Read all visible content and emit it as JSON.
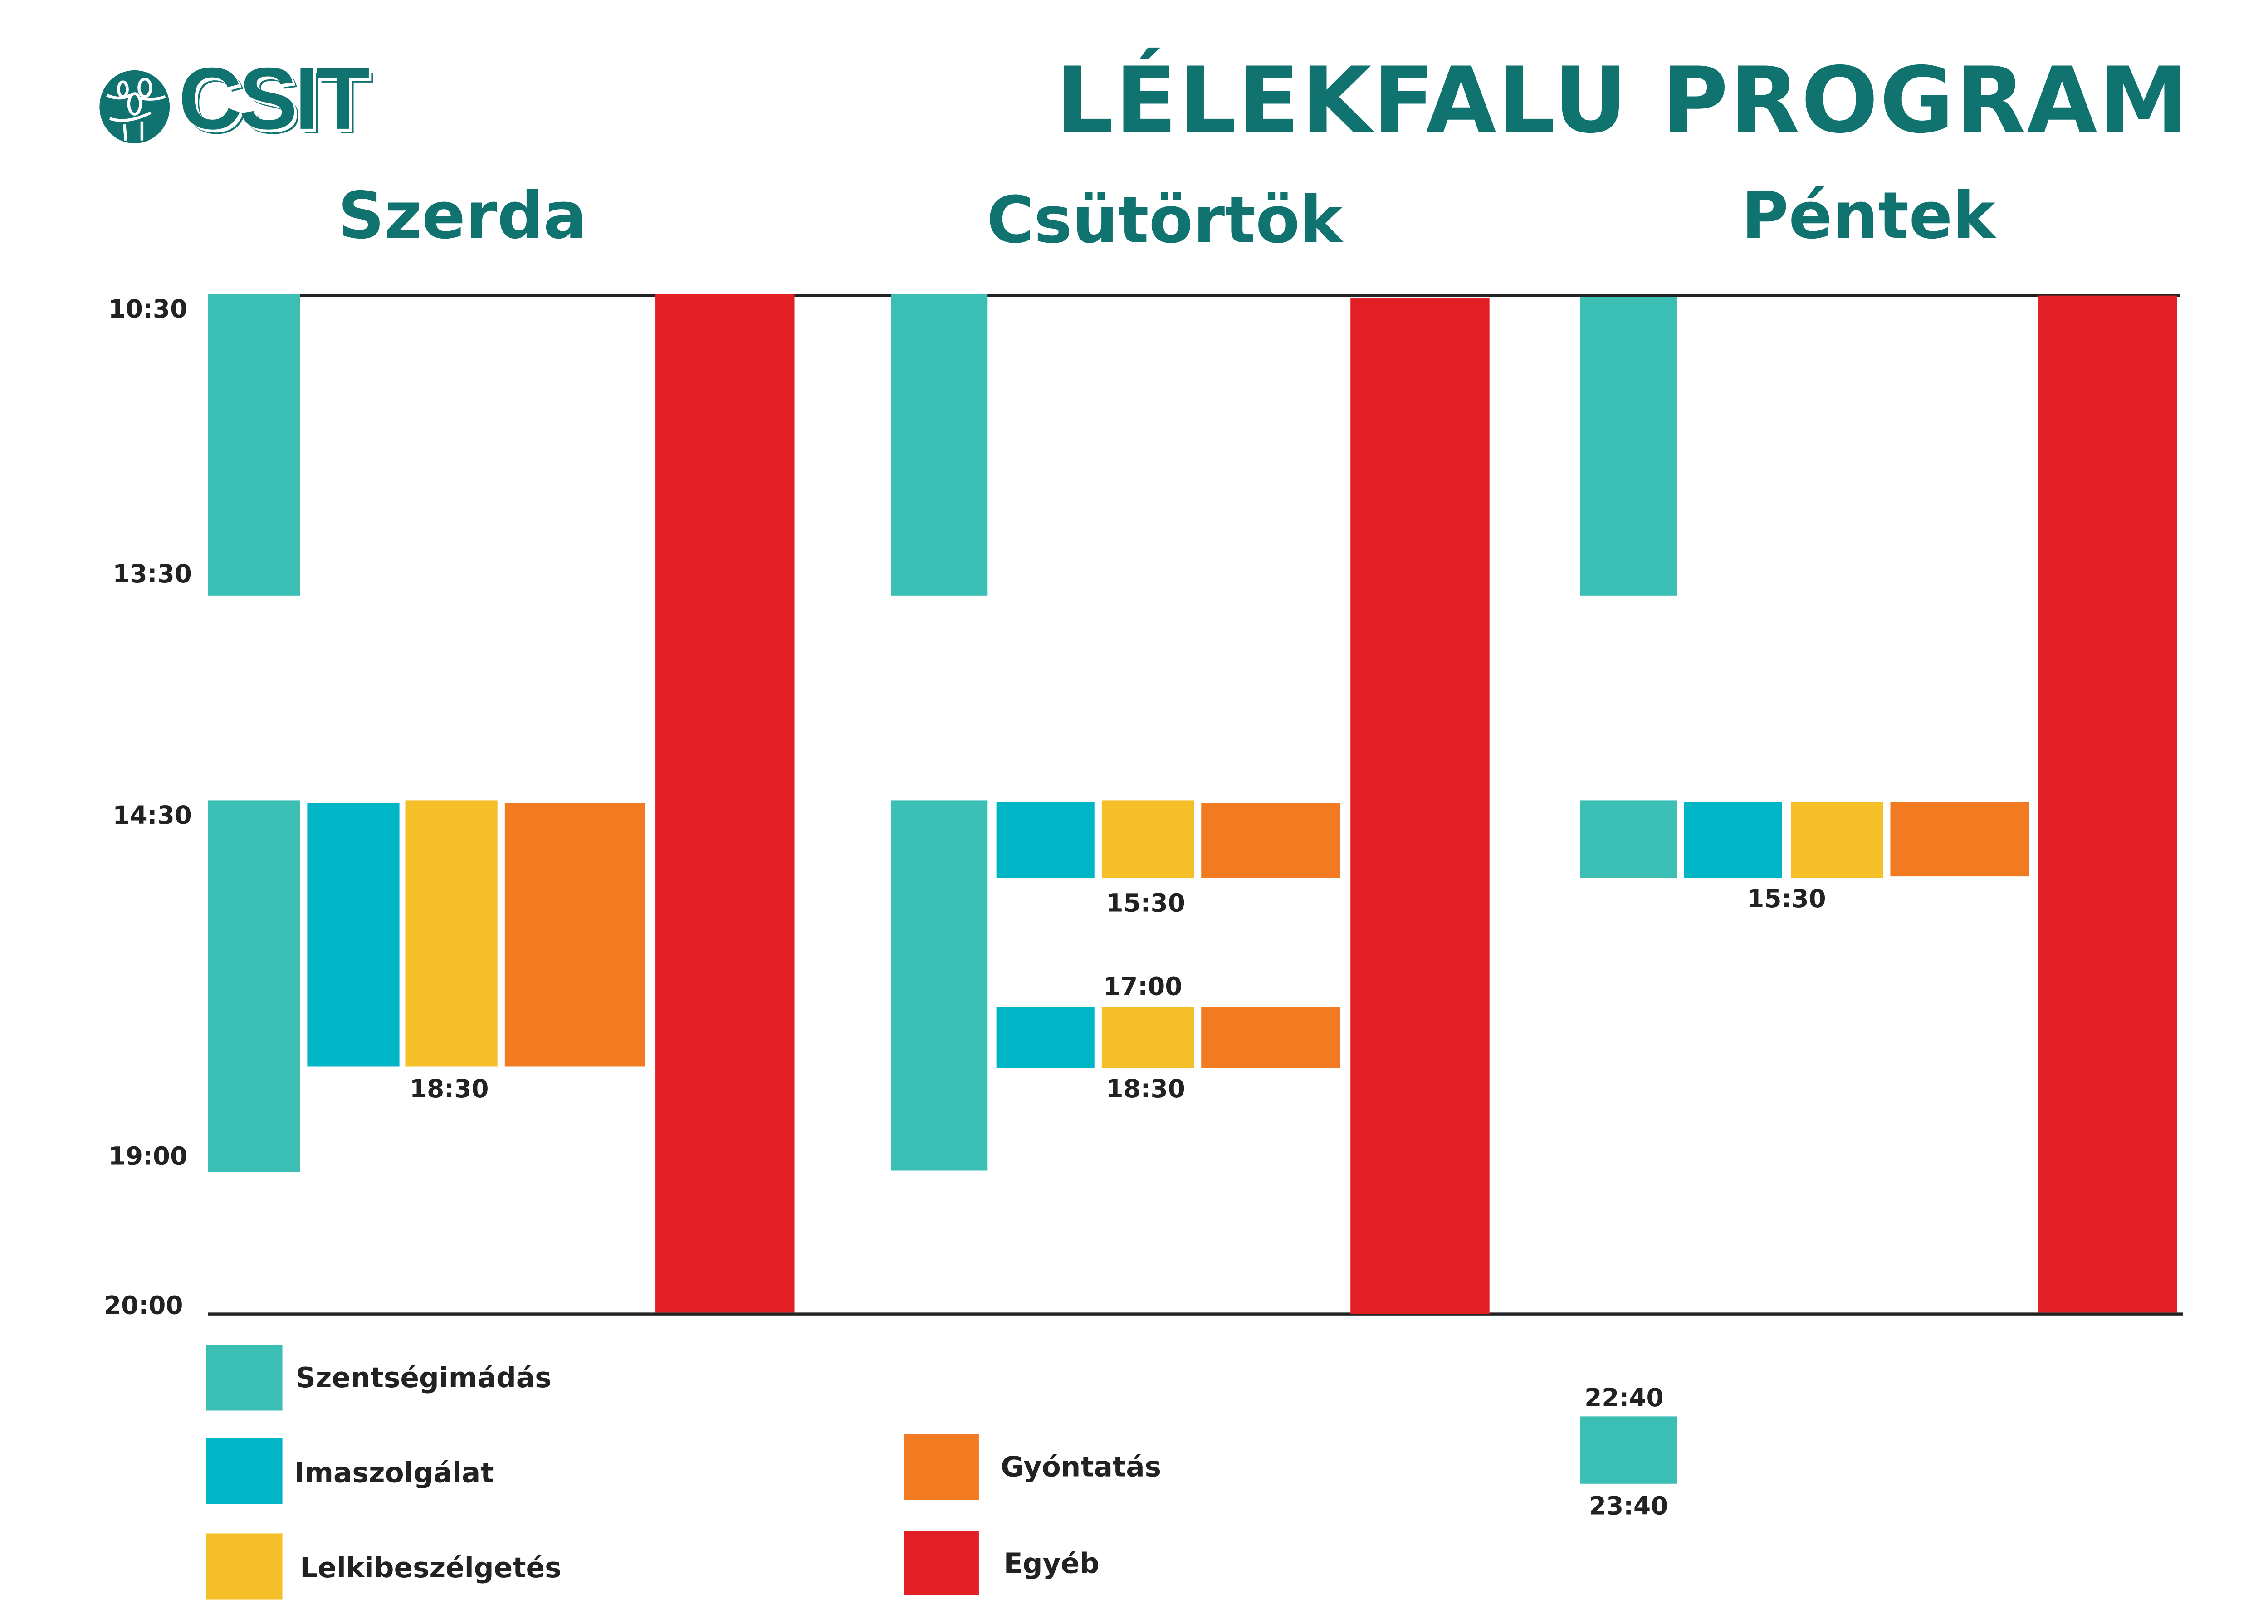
{
  "logo": {
    "text": "CSIT"
  },
  "title": "LÉLEKFALU PROGRAM",
  "days": [
    "Szerda",
    "Csütörtök",
    "Péntek"
  ],
  "axis_labels": [
    "10:30",
    "13:30",
    "14:30",
    "19:00",
    "20:00"
  ],
  "time_labels": {
    "szerda_end": "18:30",
    "csutortok_first_end": "15:30",
    "csutortok_second_start": "17:00",
    "csutortok_second_end": "18:30",
    "pentek_end": "15:30",
    "pentek_night_start": "22:40",
    "pentek_night_end": "23:40"
  },
  "legend": [
    {
      "label": "Szentségimádás",
      "color": "#3bbfb4"
    },
    {
      "label": "Imaszolgálat",
      "color": "#00b6c6"
    },
    {
      "label": "Lelkibeszélgetés",
      "color": "#f5bf29"
    },
    {
      "label": "Gyóntatás",
      "color": "#f27b21"
    },
    {
      "label": "Egyéb",
      "color": "#e31f26"
    }
  ],
  "colors": {
    "brand": "#107370"
  }
}
